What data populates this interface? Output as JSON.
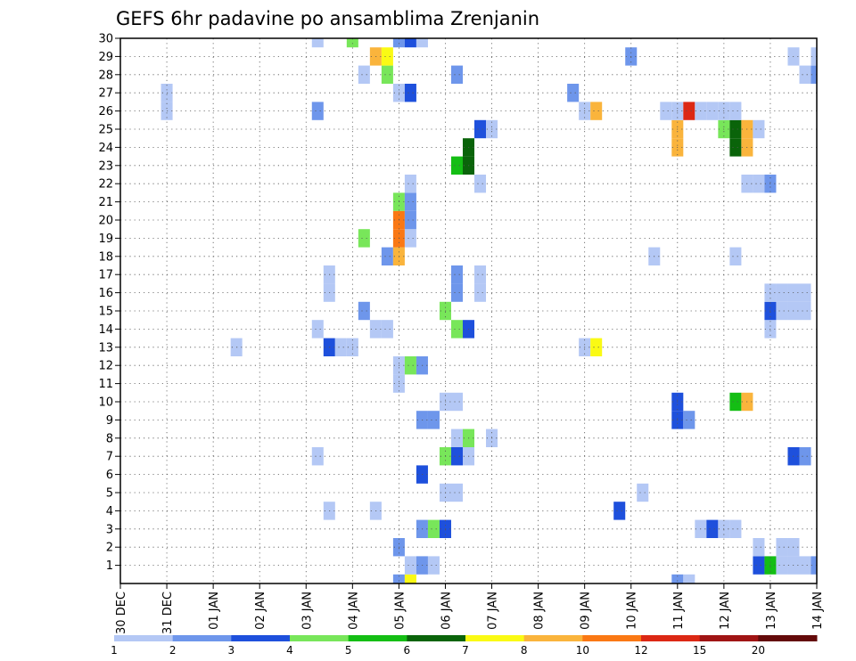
{
  "chart_data": {
    "type": "heatmap",
    "title": "GEFS 6hr padavine po ansamblima Zrenjanin",
    "x_tick_labels": [
      "30 DEC",
      "31 DEC",
      "01 JAN",
      "02 JAN",
      "03 JAN",
      "04 JAN",
      "05 JAN",
      "06 JAN",
      "07 JAN",
      "08 JAN",
      "09 JAN",
      "10 JAN",
      "11 JAN",
      "12 JAN",
      "13 JAN",
      "14 JAN"
    ],
    "x_range_days": [
      0,
      15
    ],
    "y_tick_labels": [
      "1",
      "2",
      "3",
      "4",
      "5",
      "6",
      "7",
      "8",
      "9",
      "10",
      "11",
      "12",
      "13",
      "14",
      "15",
      "16",
      "17",
      "18",
      "19",
      "20",
      "21",
      "22",
      "23",
      "24",
      "25",
      "26",
      "27",
      "28",
      "29",
      "30"
    ],
    "y_range": [
      0,
      30
    ],
    "grid": true,
    "colorbar": {
      "labels": [
        "1",
        "2",
        "3",
        "4",
        "5",
        "6",
        "7",
        "8",
        "10",
        "12",
        "15",
        "20"
      ],
      "colors": [
        "#b4c8f5",
        "#6e96eb",
        "#1e50dc",
        "#78e65a",
        "#14be14",
        "#0a640a",
        "#fafa14",
        "#fab43c",
        "#fa7814",
        "#dc2814",
        "#a01414",
        "#640a0a"
      ]
    },
    "cells": [
      {
        "t": 6.0,
        "m": 0,
        "c": 2
      },
      {
        "t": 6.25,
        "m": 0,
        "c": 7
      },
      {
        "t": 12.0,
        "m": 0,
        "c": 2
      },
      {
        "t": 12.25,
        "m": 0,
        "c": 1
      },
      {
        "t": 6.25,
        "m": 1,
        "c": 1
      },
      {
        "t": 6.5,
        "m": 1,
        "c": 2
      },
      {
        "t": 6.75,
        "m": 1,
        "c": 1
      },
      {
        "t": 13.75,
        "m": 1,
        "c": 3
      },
      {
        "t": 14.0,
        "m": 1,
        "c": 5
      },
      {
        "t": 14.25,
        "m": 1,
        "c": 1
      },
      {
        "t": 14.5,
        "m": 1,
        "c": 1
      },
      {
        "t": 14.75,
        "m": 1,
        "c": 1
      },
      {
        "t": 15.0,
        "m": 1,
        "c": 2
      },
      {
        "t": 6.0,
        "m": 2,
        "c": 2
      },
      {
        "t": 13.75,
        "m": 2,
        "c": 1
      },
      {
        "t": 14.25,
        "m": 2,
        "c": 1
      },
      {
        "t": 14.5,
        "m": 2,
        "c": 1
      },
      {
        "t": 6.5,
        "m": 3,
        "c": 2
      },
      {
        "t": 6.75,
        "m": 3,
        "c": 4
      },
      {
        "t": 7.0,
        "m": 3,
        "c": 3
      },
      {
        "t": 12.5,
        "m": 3,
        "c": 1
      },
      {
        "t": 12.75,
        "m": 3,
        "c": 3
      },
      {
        "t": 13.0,
        "m": 3,
        "c": 1
      },
      {
        "t": 13.25,
        "m": 3,
        "c": 1
      },
      {
        "t": 4.5,
        "m": 4,
        "c": 1
      },
      {
        "t": 5.5,
        "m": 4,
        "c": 1
      },
      {
        "t": 10.75,
        "m": 4,
        "c": 3
      },
      {
        "t": 7.0,
        "m": 5,
        "c": 1
      },
      {
        "t": 7.25,
        "m": 5,
        "c": 1
      },
      {
        "t": 11.25,
        "m": 5,
        "c": 1
      },
      {
        "t": 6.5,
        "m": 6,
        "c": 3
      },
      {
        "t": 4.25,
        "m": 7,
        "c": 1
      },
      {
        "t": 7.0,
        "m": 7,
        "c": 4
      },
      {
        "t": 7.25,
        "m": 7,
        "c": 3
      },
      {
        "t": 7.5,
        "m": 7,
        "c": 1
      },
      {
        "t": 14.5,
        "m": 7,
        "c": 3
      },
      {
        "t": 14.75,
        "m": 7,
        "c": 2
      },
      {
        "t": 7.25,
        "m": 8,
        "c": 1
      },
      {
        "t": 7.5,
        "m": 8,
        "c": 4
      },
      {
        "t": 8.0,
        "m": 8,
        "c": 1
      },
      {
        "t": 6.5,
        "m": 9,
        "c": 2
      },
      {
        "t": 6.75,
        "m": 9,
        "c": 2
      },
      {
        "t": 12.0,
        "m": 9,
        "c": 3
      },
      {
        "t": 12.25,
        "m": 9,
        "c": 2
      },
      {
        "t": 7.0,
        "m": 10,
        "c": 1
      },
      {
        "t": 7.25,
        "m": 10,
        "c": 1
      },
      {
        "t": 12.0,
        "m": 10,
        "c": 3
      },
      {
        "t": 13.25,
        "m": 10,
        "c": 5
      },
      {
        "t": 13.5,
        "m": 10,
        "c": 8
      },
      {
        "t": 6.0,
        "m": 11,
        "c": 1
      },
      {
        "t": 6.0,
        "m": 12,
        "c": 1
      },
      {
        "t": 6.25,
        "m": 12,
        "c": 4
      },
      {
        "t": 6.5,
        "m": 12,
        "c": 2
      },
      {
        "t": 2.5,
        "m": 13,
        "c": 1
      },
      {
        "t": 4.5,
        "m": 13,
        "c": 3
      },
      {
        "t": 4.75,
        "m": 13,
        "c": 1
      },
      {
        "t": 5.0,
        "m": 13,
        "c": 1
      },
      {
        "t": 10.0,
        "m": 13,
        "c": 1
      },
      {
        "t": 10.25,
        "m": 13,
        "c": 7
      },
      {
        "t": 4.25,
        "m": 14,
        "c": 1
      },
      {
        "t": 5.5,
        "m": 14,
        "c": 1
      },
      {
        "t": 5.75,
        "m": 14,
        "c": 1
      },
      {
        "t": 7.25,
        "m": 14,
        "c": 4
      },
      {
        "t": 7.5,
        "m": 14,
        "c": 3
      },
      {
        "t": 14.0,
        "m": 14,
        "c": 1
      },
      {
        "t": 5.25,
        "m": 15,
        "c": 2
      },
      {
        "t": 7.0,
        "m": 15,
        "c": 4
      },
      {
        "t": 14.0,
        "m": 15,
        "c": 3
      },
      {
        "t": 14.25,
        "m": 15,
        "c": 1
      },
      {
        "t": 14.5,
        "m": 15,
        "c": 1
      },
      {
        "t": 14.75,
        "m": 15,
        "c": 1
      },
      {
        "t": 4.5,
        "m": 16,
        "c": 1
      },
      {
        "t": 7.25,
        "m": 16,
        "c": 2
      },
      {
        "t": 7.75,
        "m": 16,
        "c": 1
      },
      {
        "t": 14.0,
        "m": 16,
        "c": 1
      },
      {
        "t": 14.25,
        "m": 16,
        "c": 1
      },
      {
        "t": 14.5,
        "m": 16,
        "c": 1
      },
      {
        "t": 14.75,
        "m": 16,
        "c": 1
      },
      {
        "t": 4.5,
        "m": 17,
        "c": 1
      },
      {
        "t": 7.25,
        "m": 17,
        "c": 2
      },
      {
        "t": 7.75,
        "m": 17,
        "c": 1
      },
      {
        "t": 5.75,
        "m": 18,
        "c": 2
      },
      {
        "t": 6.0,
        "m": 18,
        "c": 8
      },
      {
        "t": 11.5,
        "m": 18,
        "c": 1
      },
      {
        "t": 13.25,
        "m": 18,
        "c": 1
      },
      {
        "t": 5.25,
        "m": 19,
        "c": 4
      },
      {
        "t": 6.0,
        "m": 19,
        "c": 9
      },
      {
        "t": 6.25,
        "m": 19,
        "c": 1
      },
      {
        "t": 6.0,
        "m": 20,
        "c": 9
      },
      {
        "t": 6.25,
        "m": 20,
        "c": 2
      },
      {
        "t": 6.0,
        "m": 21,
        "c": 4
      },
      {
        "t": 6.25,
        "m": 21,
        "c": 2
      },
      {
        "t": 6.25,
        "m": 22,
        "c": 1
      },
      {
        "t": 7.75,
        "m": 22,
        "c": 1
      },
      {
        "t": 13.5,
        "m": 22,
        "c": 1
      },
      {
        "t": 13.75,
        "m": 22,
        "c": 1
      },
      {
        "t": 14.0,
        "m": 22,
        "c": 2
      },
      {
        "t": 7.25,
        "m": 23,
        "c": 5
      },
      {
        "t": 7.5,
        "m": 23,
        "c": 6
      },
      {
        "t": 7.5,
        "m": 24,
        "c": 6
      },
      {
        "t": 12.0,
        "m": 24,
        "c": 8
      },
      {
        "t": 13.25,
        "m": 24,
        "c": 6
      },
      {
        "t": 13.5,
        "m": 24,
        "c": 8
      },
      {
        "t": 7.75,
        "m": 25,
        "c": 3
      },
      {
        "t": 8.0,
        "m": 25,
        "c": 1
      },
      {
        "t": 12.0,
        "m": 25,
        "c": 8
      },
      {
        "t": 13.0,
        "m": 25,
        "c": 4
      },
      {
        "t": 13.25,
        "m": 25,
        "c": 6
      },
      {
        "t": 13.5,
        "m": 25,
        "c": 8
      },
      {
        "t": 13.75,
        "m": 25,
        "c": 1
      },
      {
        "t": 1.0,
        "m": 26,
        "c": 1
      },
      {
        "t": 4.25,
        "m": 26,
        "c": 2
      },
      {
        "t": 10.0,
        "m": 26,
        "c": 1
      },
      {
        "t": 10.25,
        "m": 26,
        "c": 8
      },
      {
        "t": 11.75,
        "m": 26,
        "c": 1
      },
      {
        "t": 12.0,
        "m": 26,
        "c": 1
      },
      {
        "t": 12.25,
        "m": 26,
        "c": 10
      },
      {
        "t": 12.5,
        "m": 26,
        "c": 1
      },
      {
        "t": 12.75,
        "m": 26,
        "c": 1
      },
      {
        "t": 13.0,
        "m": 26,
        "c": 1
      },
      {
        "t": 13.25,
        "m": 26,
        "c": 1
      },
      {
        "t": 1.0,
        "m": 27,
        "c": 1
      },
      {
        "t": 6.0,
        "m": 27,
        "c": 1
      },
      {
        "t": 6.25,
        "m": 27,
        "c": 3
      },
      {
        "t": 9.75,
        "m": 27,
        "c": 2
      },
      {
        "t": 5.25,
        "m": 28,
        "c": 1
      },
      {
        "t": 5.75,
        "m": 28,
        "c": 4
      },
      {
        "t": 7.25,
        "m": 28,
        "c": 2
      },
      {
        "t": 14.75,
        "m": 28,
        "c": 1
      },
      {
        "t": 15.0,
        "m": 28,
        "c": 2
      },
      {
        "t": 5.5,
        "m": 29,
        "c": 8
      },
      {
        "t": 5.75,
        "m": 29,
        "c": 7
      },
      {
        "t": 11.0,
        "m": 29,
        "c": 2
      },
      {
        "t": 14.5,
        "m": 29,
        "c": 1
      },
      {
        "t": 15.0,
        "m": 29,
        "c": 1
      },
      {
        "t": 4.25,
        "m": 30,
        "c": 1
      },
      {
        "t": 5.0,
        "m": 30,
        "c": 4
      },
      {
        "t": 6.0,
        "m": 30,
        "c": 2
      },
      {
        "t": 6.25,
        "m": 30,
        "c": 3
      },
      {
        "t": 6.5,
        "m": 30,
        "c": 1
      }
    ]
  }
}
